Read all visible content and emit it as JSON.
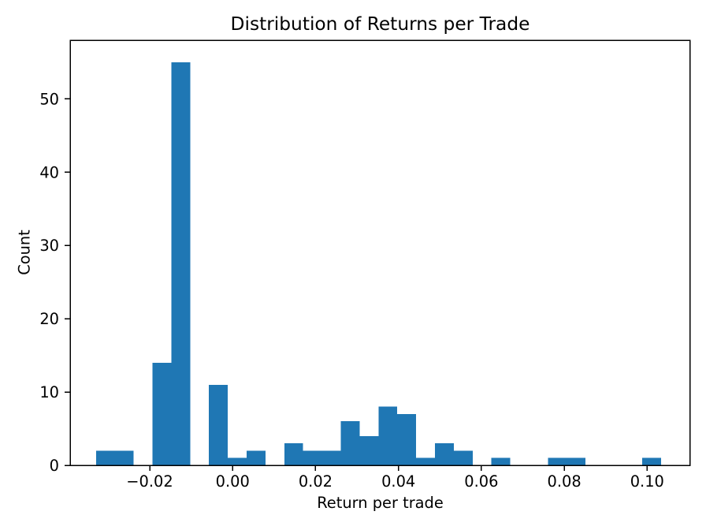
{
  "chart_data": {
    "type": "bar",
    "subtype": "histogram",
    "title": "Distribution of Returns per Trade",
    "xlabel": "Return per trade",
    "ylabel": "Count",
    "bar_color": "#1f77b4",
    "axis_color": "#000000",
    "background_color": "#ffffff",
    "grid": false,
    "legend": false,
    "xlim": [
      -0.0392,
      0.1103
    ],
    "ylim": [
      0,
      58
    ],
    "x_ticks": {
      "values": [
        -0.02,
        0.0,
        0.02,
        0.04,
        0.06,
        0.08,
        0.1
      ],
      "labels": [
        "−0.02",
        "0.00",
        "0.02",
        "0.04",
        "0.06",
        "0.08",
        "0.10"
      ]
    },
    "y_ticks": {
      "values": [
        0,
        10,
        20,
        30,
        40,
        50
      ],
      "labels": [
        "0",
        "10",
        "20",
        "30",
        "40",
        "50"
      ]
    },
    "bins": {
      "edges": [
        -0.03297,
        -0.02843,
        -0.02389,
        -0.01934,
        -0.0148,
        -0.01026,
        -0.00571,
        -0.00117,
        0.00337,
        0.00792,
        0.01246,
        0.017,
        0.02155,
        0.02609,
        0.03063,
        0.03517,
        0.03972,
        0.04426,
        0.0488,
        0.05335,
        0.05789,
        0.06243,
        0.06698,
        0.07152,
        0.07606,
        0.08061,
        0.08515,
        0.08969,
        0.09424,
        0.09878,
        0.10332
      ],
      "counts": [
        2,
        2,
        0,
        14,
        55,
        0,
        11,
        1,
        2,
        0,
        3,
        2,
        2,
        6,
        4,
        8,
        7,
        1,
        3,
        2,
        0,
        1,
        0,
        0,
        1,
        1,
        0,
        0,
        0,
        1
      ]
    }
  }
}
